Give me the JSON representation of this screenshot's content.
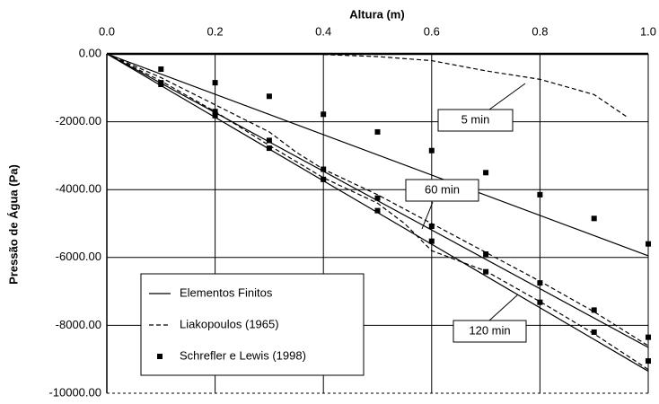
{
  "chart_data": {
    "type": "line",
    "x_label": "Altura (m)",
    "y_label": "Pressão de Água (Pa)",
    "xlim": [
      0,
      1
    ],
    "ylim": [
      -10000,
      0
    ],
    "xticks": [
      {
        "value": 0,
        "label": "0.0"
      },
      0.2,
      0.4,
      0.6,
      0.8,
      {
        "value": 1,
        "label": "1.0"
      }
    ],
    "yticks": [
      {
        "value": 0,
        "label": "0.00"
      },
      {
        "value": -2000,
        "label": "-2000.00"
      },
      {
        "value": -4000,
        "label": "-4000.00"
      },
      {
        "value": -6000,
        "label": "-6000.00"
      },
      {
        "value": -8000,
        "label": "-8000.00"
      },
      {
        "value": -10000,
        "label": "-10000.00"
      }
    ],
    "grid": true,
    "series": [
      {
        "name": "Elementos Finitos",
        "style": "solid",
        "color": "#000000",
        "curves": [
          {
            "x": [
              0,
              1
            ],
            "values": [
              0,
              -5950
            ]
          },
          {
            "x": [
              0,
              1
            ],
            "values": [
              0,
              -8650
            ]
          },
          {
            "x": [
              0,
              1
            ],
            "values": [
              0,
              -9350
            ]
          }
        ]
      },
      {
        "name": "Liakopoulos (1965)",
        "style": "dashed",
        "color": "#000000",
        "curves": [
          {
            "x": [
              0.4,
              0.5,
              0.6,
              0.7,
              0.8,
              0.9,
              0.96
            ],
            "values": [
              -20,
              -80,
              -200,
              -500,
              -750,
              -1200,
              -1850
            ]
          },
          {
            "x": [
              0,
              0.1,
              0.2,
              0.3,
              0.35,
              0.4,
              0.5,
              0.6,
              0.7,
              0.8,
              0.9,
              1
            ],
            "values": [
              0,
              -700,
              -1500,
              -2300,
              -2900,
              -3400,
              -4150,
              -5000,
              -5850,
              -6700,
              -7600,
              -8600
            ]
          },
          {
            "x": [
              0,
              0.1,
              0.2,
              0.3,
              0.4,
              0.5,
              0.55,
              0.6,
              0.7,
              0.8,
              0.9,
              1
            ],
            "values": [
              0,
              -800,
              -1700,
              -2700,
              -3650,
              -4400,
              -5000,
              -5800,
              -6400,
              -7300,
              -8250,
              -9300
            ]
          }
        ]
      },
      {
        "name": "Schrefler e Lewis (1998)",
        "style": "marker",
        "color": "#000000",
        "curves": [
          {
            "x": [
              0.1,
              0.2,
              0.3,
              0.4,
              0.5,
              0.6,
              0.7,
              0.8,
              0.9,
              1
            ],
            "values": [
              -450,
              -850,
              -1250,
              -1780,
              -2300,
              -2850,
              -3500,
              -4150,
              -4850,
              -5600
            ]
          },
          {
            "x": [
              0.1,
              0.2,
              0.3,
              0.4,
              0.5,
              0.6,
              0.7,
              0.8,
              0.9,
              1
            ],
            "values": [
              -850,
              -1700,
              -2550,
              -3400,
              -4250,
              -5080,
              -5900,
              -6750,
              -7550,
              -8350
            ]
          },
          {
            "x": [
              0.1,
              0.2,
              0.3,
              0.4,
              0.5,
              0.6,
              0.7,
              0.8,
              0.9,
              1
            ],
            "values": [
              -900,
              -1820,
              -2780,
              -3700,
              -4620,
              -5520,
              -6420,
              -7320,
              -8200,
              -9050
            ]
          }
        ]
      }
    ],
    "annotations": [
      "5 min",
      "60 min",
      "120 min"
    ]
  }
}
